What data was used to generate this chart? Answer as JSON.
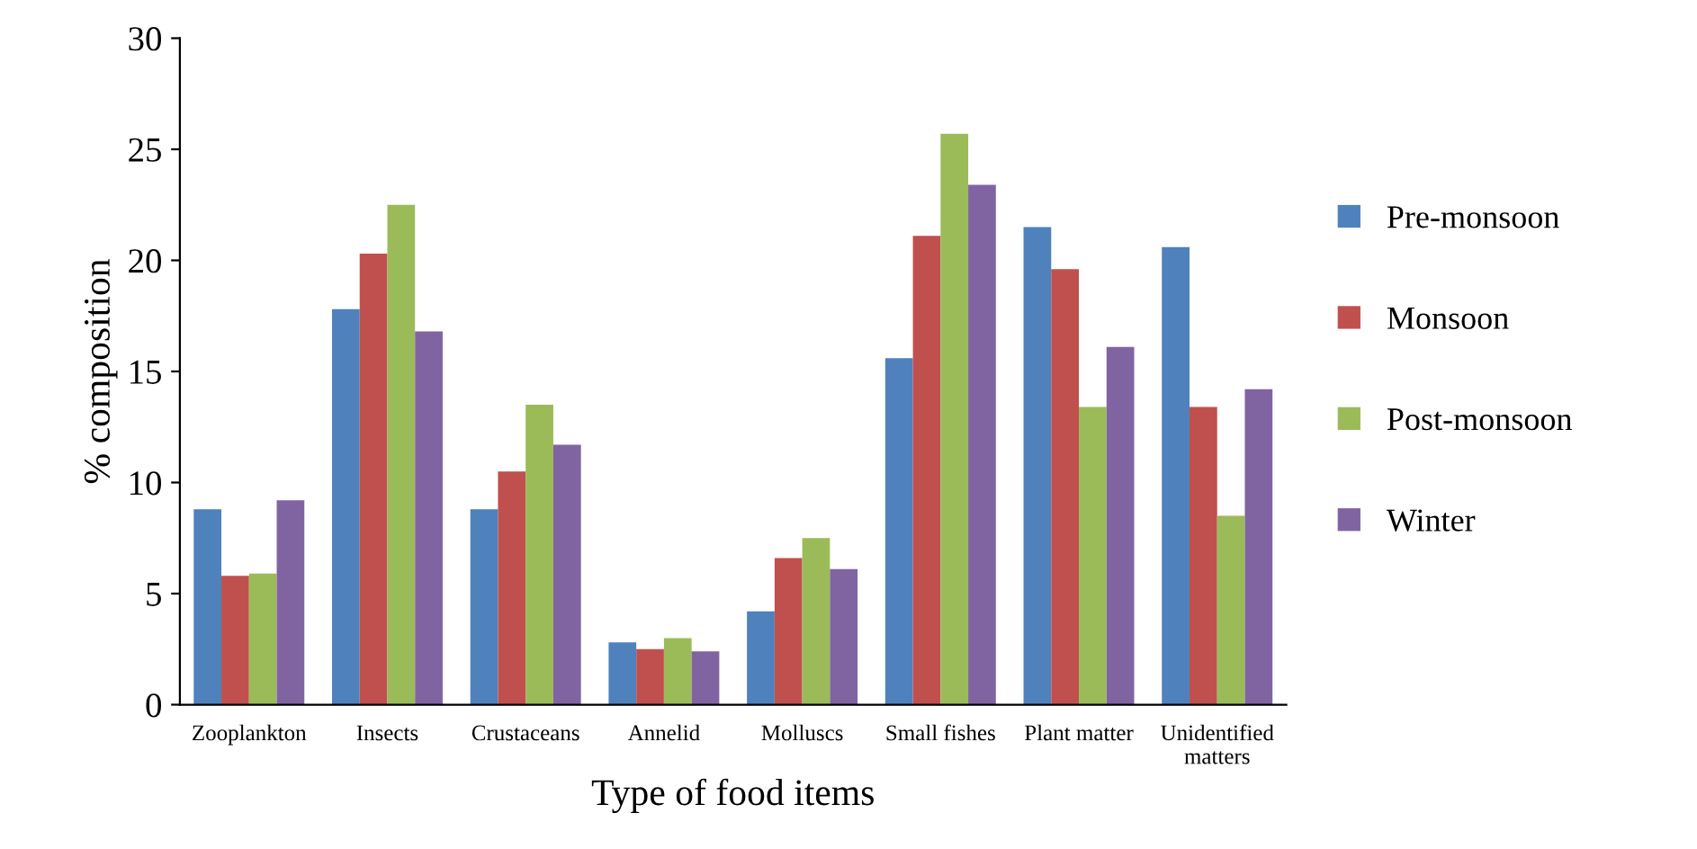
{
  "chart_data": {
    "type": "bar",
    "xlabel": "Type of food items",
    "ylabel": "% composition",
    "categories": [
      "Zooplankton",
      "Insects",
      "Crustaceans",
      "Annelid",
      "Molluscs",
      "Small fishes",
      "Plant matter",
      "Unidentified matters"
    ],
    "series": [
      {
        "name": "Pre-monsoon",
        "color": "#4f81bd",
        "values": [
          8.8,
          17.8,
          8.8,
          2.8,
          4.2,
          15.6,
          21.5,
          20.6
        ]
      },
      {
        "name": "Monsoon",
        "color": "#c0504d",
        "values": [
          5.8,
          20.3,
          10.5,
          2.5,
          6.6,
          21.1,
          19.6,
          13.4
        ]
      },
      {
        "name": "Post-monsoon",
        "color": "#9bbb59",
        "values": [
          5.9,
          22.5,
          13.5,
          3.0,
          7.5,
          25.7,
          13.4,
          8.5
        ]
      },
      {
        "name": "Winter",
        "color": "#8064a2",
        "values": [
          9.2,
          16.8,
          11.7,
          2.4,
          6.1,
          23.4,
          16.1,
          14.2
        ]
      }
    ],
    "ylim": [
      0,
      30
    ],
    "yticks": [
      0,
      5,
      10,
      15,
      20,
      25,
      30
    ],
    "grid": false,
    "legend": "right"
  }
}
